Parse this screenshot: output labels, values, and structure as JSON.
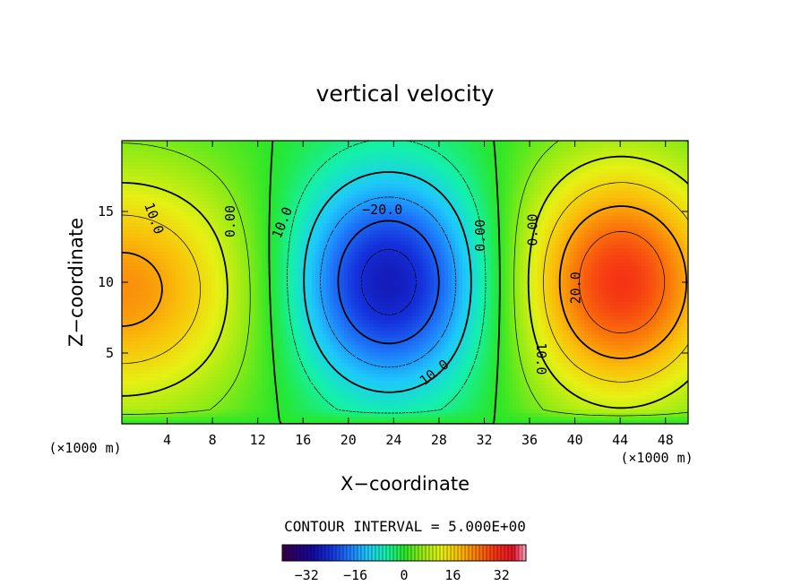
{
  "chart_data": {
    "type": "heatmap",
    "title": "vertical velocity",
    "xlabel": "X−coordinate",
    "ylabel": "Z−coordinate",
    "x_unit": "(×1000 m)",
    "y_unit": "(×1000 m)",
    "xlim": [
      0,
      50
    ],
    "ylim": [
      0,
      20
    ],
    "x_ticks": [
      4,
      8,
      12,
      16,
      20,
      24,
      28,
      32,
      36,
      40,
      44,
      48
    ],
    "y_ticks": [
      5,
      10,
      15
    ],
    "contour_interval_text": "CONTOUR INTERVAL = 5.000E+00",
    "contour_labels": [
      "10.0",
      "0.00",
      "10.0",
      "−20.0",
      "10.0",
      "0.00",
      "0.00",
      "20.0",
      "10.0"
    ],
    "colorbar": {
      "range": [
        -40,
        40
      ],
      "tick_values": [
        -32,
        -16,
        0,
        16,
        32
      ],
      "tick_labels": [
        "−32",
        "−16",
        "0",
        "16",
        "32"
      ]
    },
    "extrema": [
      {
        "type": "max",
        "x": 0,
        "z": 9.5,
        "value": 22
      },
      {
        "type": "min",
        "x": 23.5,
        "z": 10,
        "value": -28
      },
      {
        "type": "max",
        "x": 44,
        "z": 10,
        "value": 30
      }
    ]
  }
}
